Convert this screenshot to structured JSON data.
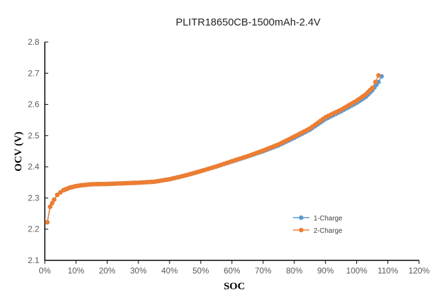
{
  "chart_data": {
    "type": "line",
    "title": "PLITR18650CB-1500mAh-2.4V",
    "xlabel": "SOC",
    "ylabel": "OCV  (V)",
    "xlim": [
      0,
      120
    ],
    "ylim": [
      2.1,
      2.8
    ],
    "xticks": [
      "0%",
      "10%",
      "20%",
      "30%",
      "40%",
      "50%",
      "60%",
      "70%",
      "80%",
      "90%",
      "100%",
      "110%",
      "120%"
    ],
    "yticks": [
      "2.1",
      "2.2",
      "2.3",
      "2.4",
      "2.5",
      "2.6",
      "2.7",
      "2.8"
    ],
    "grid": false,
    "legend_placement": "lower-right",
    "series": [
      {
        "name": "1-Charge",
        "color": "#5b9bd5",
        "x": [
          0.8,
          1.7,
          3,
          4,
          5,
          6,
          8,
          10,
          12,
          15,
          20,
          25,
          30,
          35,
          40,
          45,
          50,
          55,
          60,
          65,
          70,
          75,
          80,
          85,
          90,
          95,
          100,
          103,
          105,
          107,
          108
        ],
        "y": [
          2.222,
          2.272,
          2.295,
          2.31,
          2.318,
          2.325,
          2.333,
          2.338,
          2.341,
          2.344,
          2.345,
          2.347,
          2.349,
          2.352,
          2.36,
          2.372,
          2.386,
          2.401,
          2.417,
          2.433,
          2.45,
          2.469,
          2.493,
          2.519,
          2.553,
          2.578,
          2.605,
          2.625,
          2.645,
          2.672,
          2.69
        ]
      },
      {
        "name": "2-Charge",
        "color": "#ed7d31",
        "x": [
          0.8,
          1.7,
          3,
          4,
          5,
          6,
          8,
          10,
          12,
          15,
          20,
          25,
          30,
          35,
          40,
          45,
          50,
          55,
          60,
          65,
          70,
          75,
          80,
          85,
          90,
          95,
          100,
          103,
          105,
          106,
          107
        ],
        "y": [
          2.222,
          2.272,
          2.295,
          2.31,
          2.318,
          2.325,
          2.333,
          2.338,
          2.341,
          2.344,
          2.345,
          2.347,
          2.349,
          2.352,
          2.36,
          2.372,
          2.386,
          2.401,
          2.418,
          2.434,
          2.452,
          2.472,
          2.497,
          2.523,
          2.559,
          2.583,
          2.612,
          2.633,
          2.653,
          2.672,
          2.693
        ]
      }
    ]
  }
}
